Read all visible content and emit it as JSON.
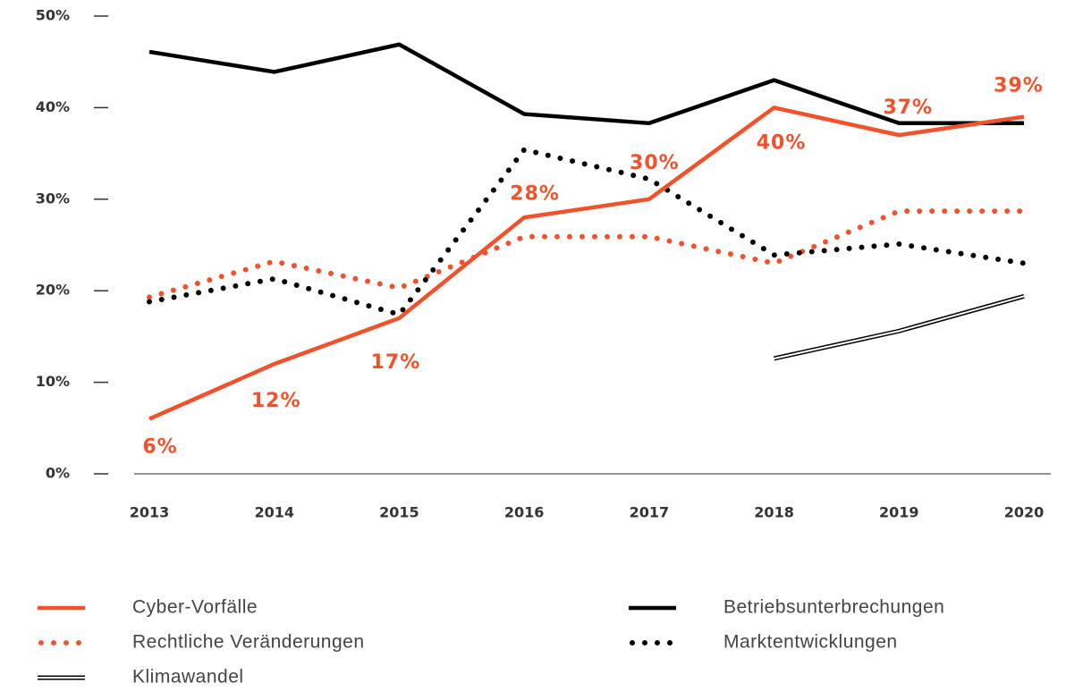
{
  "chart_data": {
    "type": "line",
    "categories": [
      "2013",
      "2014",
      "2015",
      "2016",
      "2017",
      "2018",
      "2019",
      "2020"
    ],
    "ylim": [
      0,
      50
    ],
    "yticks": [
      {
        "value": 0,
        "label": "0%"
      },
      {
        "value": 10,
        "label": "10%"
      },
      {
        "value": 20,
        "label": "20%"
      },
      {
        "value": 30,
        "label": "30%"
      },
      {
        "value": 40,
        "label": "40%"
      },
      {
        "value": 50,
        "label": "50%"
      }
    ],
    "series": [
      {
        "name": "Cyber-Vorfälle",
        "color": "#f2522b",
        "style": "solid",
        "values": [
          6,
          12,
          17,
          28,
          30,
          40,
          37,
          39
        ],
        "value_labels": [
          "6%",
          "12%",
          "17%",
          "28%",
          "30%",
          "40%",
          "37%",
          "39%"
        ]
      },
      {
        "name": "Rechtliche Veränderungen",
        "color": "#f2522b",
        "style": "dotted",
        "values": [
          19.3,
          23.2,
          20.3,
          25.9,
          25.9,
          23,
          28.7,
          28.7
        ]
      },
      {
        "name": "Klimawandel",
        "color": "#000000",
        "style": "double",
        "values": [
          null,
          null,
          null,
          null,
          null,
          12.6,
          15.6,
          19.4
        ]
      },
      {
        "name": "Betriebsunterbrechungen",
        "color": "#000000",
        "style": "solid",
        "values": [
          46.1,
          43.9,
          46.9,
          39.3,
          38.3,
          43,
          38.3,
          38.3
        ]
      },
      {
        "name": "Marktentwicklungen",
        "color": "#000000",
        "style": "dotted",
        "values": [
          18.8,
          21.3,
          17.4,
          35.4,
          32.2,
          23.9,
          25.1,
          23
        ]
      }
    ]
  }
}
